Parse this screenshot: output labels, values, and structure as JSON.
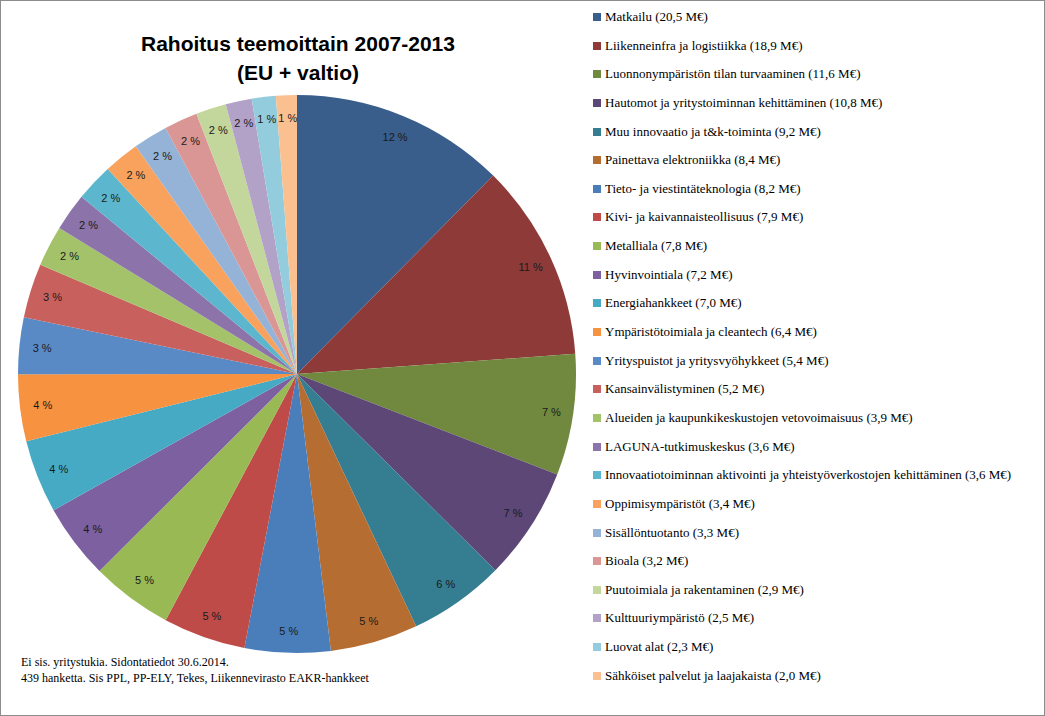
{
  "chart_data": {
    "type": "pie",
    "title": "Rahoitus teemoittain 2007-2013",
    "subtitle": "(EU + valtio)",
    "annotations": [
      "Ei sis. yritystukia. Sidontatiedot 30.6.2014.",
      "439 hanketta. Sis PPL, PP-ELY, Tekes, Liikennevirasto EAKR-hankkeet"
    ],
    "categories": [
      "Matkailu (20,5 M€)",
      "Liikenneinfra ja logistiikka (18,9 M€)",
      "Luonnonympäristön tilan turvaaminen (11,6 M€)",
      "Hautomot ja yritystoiminnan kehittäminen (10,8 M€)",
      "Muu innovaatio ja t&k-toiminta (9,2 M€)",
      "Painettava elektroniikka (8,4 M€)",
      "Tieto- ja viestintäteknologia (8,2 M€)",
      "Kivi- ja kaivannaisteollisuus (7,9 M€)",
      "Metalliala (7,8 M€)",
      "Hyvinvointiala (7,2 M€)",
      "Energiahankkeet (7,0 M€)",
      "Ympäristötoimiala ja cleantech (6,4 M€)",
      "Yrityspuistot ja yritysvyöhykkeet (5,4 M€)",
      "Kansainvälistyminen (5,2 M€)",
      "Alueiden ja kaupunkikeskustojen vetovoimaisuus (3,9 M€)",
      "LAGUNA-tutkimuskeskus (3,6 M€)",
      "Innovaatiotoiminnan aktivointi ja yhteistyöverkostojen kehittäminen (3,6 M€)",
      "Oppimisympäristöt (3,4 M€)",
      "Sisällöntuotanto (3,3 M€)",
      "Bioala (3,2 M€)",
      "Puutoimiala ja rakentaminen (2,9 M€)",
      "Kulttuuriympäristö (2,5 M€)",
      "Luovat alat (2,3 M€)",
      "Sähköiset palvelut ja laajakaista (2,0 M€)"
    ],
    "values": [
      12.41,
      11.44,
      7.02,
      6.54,
      5.57,
      5.08,
      4.96,
      4.78,
      4.72,
      4.36,
      4.24,
      3.87,
      3.27,
      3.15,
      2.36,
      2.18,
      2.18,
      2.06,
      2.0,
      1.94,
      1.76,
      1.51,
      1.39,
      1.21
    ],
    "value_labels": [
      "12 %",
      "11 %",
      "7 %",
      "7 %",
      "6 %",
      "5 %",
      "5 %",
      "5 %",
      "5 %",
      "4 %",
      "4 %",
      "4 %",
      "3 %",
      "3 %",
      "2 %",
      "2 %",
      "2 %",
      "2 %",
      "2 %",
      "2 %",
      "2 %",
      "2 %",
      "1 %",
      "1 %"
    ],
    "colors": [
      "#395E8B",
      "#8E3A38",
      "#71893F",
      "#5C4776",
      "#357D91",
      "#B66D31",
      "#4A7EBB",
      "#BE4B48",
      "#98B954",
      "#7D60A0",
      "#46AAC5",
      "#F69240",
      "#5A8AC6",
      "#C8615E",
      "#A3C26A",
      "#8C74AB",
      "#5CB6CE",
      "#F8A25D",
      "#95B3D7",
      "#D99694",
      "#C3D69B",
      "#B3A2C7",
      "#93CDDD",
      "#FAC090"
    ],
    "data_labels": true,
    "legend": "right"
  }
}
